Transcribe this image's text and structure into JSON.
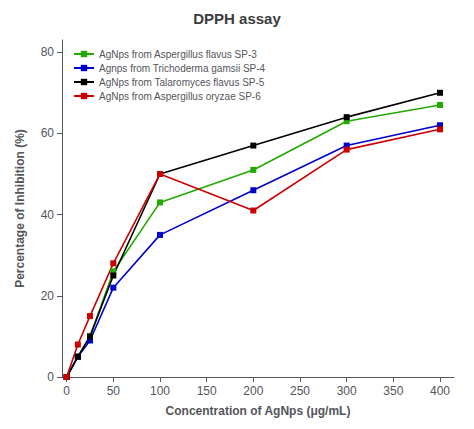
{
  "chart_data": {
    "type": "line",
    "title": "DPPH assay",
    "xlabel": "Concentration of AgNps (μg/mL)",
    "ylabel": "Percentage of Inhibition (%)",
    "x": [
      0,
      12,
      25,
      50,
      100,
      200,
      300,
      400
    ],
    "series": [
      {
        "name": "AgNps from Aspergillus flavus SP-3",
        "color": "#22aa00",
        "marker": "square",
        "values": [
          0,
          5,
          10,
          26,
          43,
          51,
          63,
          67
        ]
      },
      {
        "name": "Agnps from Trichoderma gamsii SP-4",
        "color": "#0000cc",
        "marker": "square",
        "values": [
          0,
          5,
          9,
          22,
          35,
          46,
          57,
          62
        ]
      },
      {
        "name": "AgNps from Talaromyces flavus SP-5",
        "color": "#000000",
        "marker": "square",
        "values": [
          0,
          5,
          10,
          25,
          50,
          57,
          64,
          70
        ]
      },
      {
        "name": "AgNps from Aspergillus oryzae SP-6",
        "color": "#cc0000",
        "marker": "square",
        "values": [
          0,
          8,
          15,
          28,
          50,
          41,
          56,
          61
        ]
      }
    ],
    "xlim": [
      -5,
      415
    ],
    "ylim": [
      0,
      83
    ],
    "xticks": [
      0,
      50,
      100,
      150,
      200,
      250,
      300,
      350,
      400
    ],
    "yticks": [
      0,
      20,
      40,
      60,
      80
    ],
    "grid": false,
    "legend": "upper left"
  }
}
